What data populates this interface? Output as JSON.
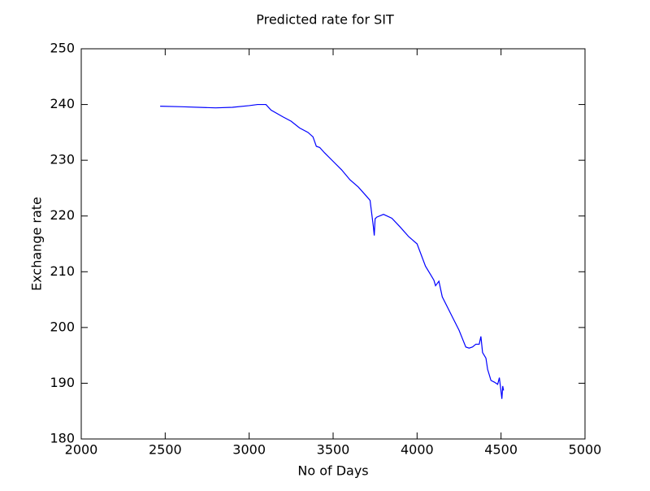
{
  "chart_data": {
    "type": "line",
    "title": "Predicted rate for SIT",
    "x_label": "No of Days",
    "y_label": "Exchange rate",
    "x": [
      2470,
      2600,
      2800,
      2900,
      3000,
      3050,
      3100,
      3130,
      3200,
      3250,
      3300,
      3350,
      3380,
      3400,
      3420,
      3450,
      3500,
      3550,
      3600,
      3650,
      3700,
      3720,
      3740,
      3745,
      3750,
      3760,
      3800,
      3850,
      3900,
      3950,
      4000,
      4050,
      4080,
      4100,
      4110,
      4130,
      4150,
      4200,
      4250,
      4270,
      4290,
      4310,
      4330,
      4350,
      4370,
      4380,
      4390,
      4410,
      4420,
      4440,
      4460,
      4480,
      4490,
      4500,
      4505,
      4510,
      4515
    ],
    "series": [
      {
        "name": "Predicted rate",
        "color": "#0000ff",
        "values": [
          239.7,
          239.6,
          239.4,
          239.5,
          239.8,
          240.0,
          240.0,
          239.0,
          237.8,
          237.0,
          235.8,
          235.0,
          234.2,
          232.5,
          232.3,
          231.3,
          229.8,
          228.3,
          226.5,
          225.2,
          223.5,
          222.8,
          218.0,
          216.5,
          219.5,
          219.8,
          220.3,
          219.6,
          218.0,
          216.3,
          215.0,
          211.0,
          209.5,
          208.5,
          207.5,
          208.3,
          205.5,
          202.5,
          199.5,
          198.0,
          196.5,
          196.3,
          196.5,
          197.0,
          197.0,
          198.4,
          195.5,
          194.5,
          192.5,
          190.5,
          190.2,
          189.8,
          191.0,
          188.5,
          187.2,
          189.5,
          188.7
        ]
      }
    ],
    "xlim": [
      2000,
      5000
    ],
    "xticks": [
      2000,
      2500,
      3000,
      3500,
      4000,
      4500,
      5000
    ],
    "ylim": [
      180,
      250
    ],
    "yticks": [
      180,
      190,
      200,
      210,
      220,
      230,
      240,
      250
    ]
  }
}
